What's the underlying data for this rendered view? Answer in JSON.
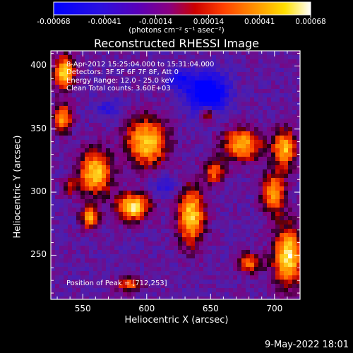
{
  "colorbar": {
    "colormap": "blue-purple-red-orange-yellow-white (RHESSI)",
    "tick_labels": [
      "-0.00068",
      "-0.00041",
      "-0.00014",
      "0.00014",
      "0.00041",
      "0.00068"
    ],
    "tick_values": [
      -0.00068,
      -0.00041,
      -0.00014,
      0.00014,
      0.00041,
      0.00068
    ],
    "range": [
      -0.00068,
      0.00068
    ],
    "units_label": "(photons cm⁻² s⁻¹ asec⁻²)"
  },
  "title": "Reconstructed RHESSI Image",
  "info_lines": [
    " 8-Apr-2012 15:25:04.000 to 15:31:04.000",
    "Detectors: 3F 5F 6F 7F 8F, Att 0",
    "Energy Range: 12.0 - 25.0 keV",
    "Clean    Total counts: 3.60E+03"
  ],
  "peak_text": "Position of Peak = [712,253]",
  "axes": {
    "xlabel": "Heliocentric X (arcsec)",
    "ylabel": "Heliocentric Y (arcsec)",
    "x_ticks": [
      550,
      600,
      650,
      700
    ],
    "y_ticks": [
      250,
      300,
      350,
      400
    ],
    "xlim": [
      525,
      720
    ],
    "ylim": [
      215,
      412
    ]
  },
  "timestamp": "9-May-2022 18:01"
}
